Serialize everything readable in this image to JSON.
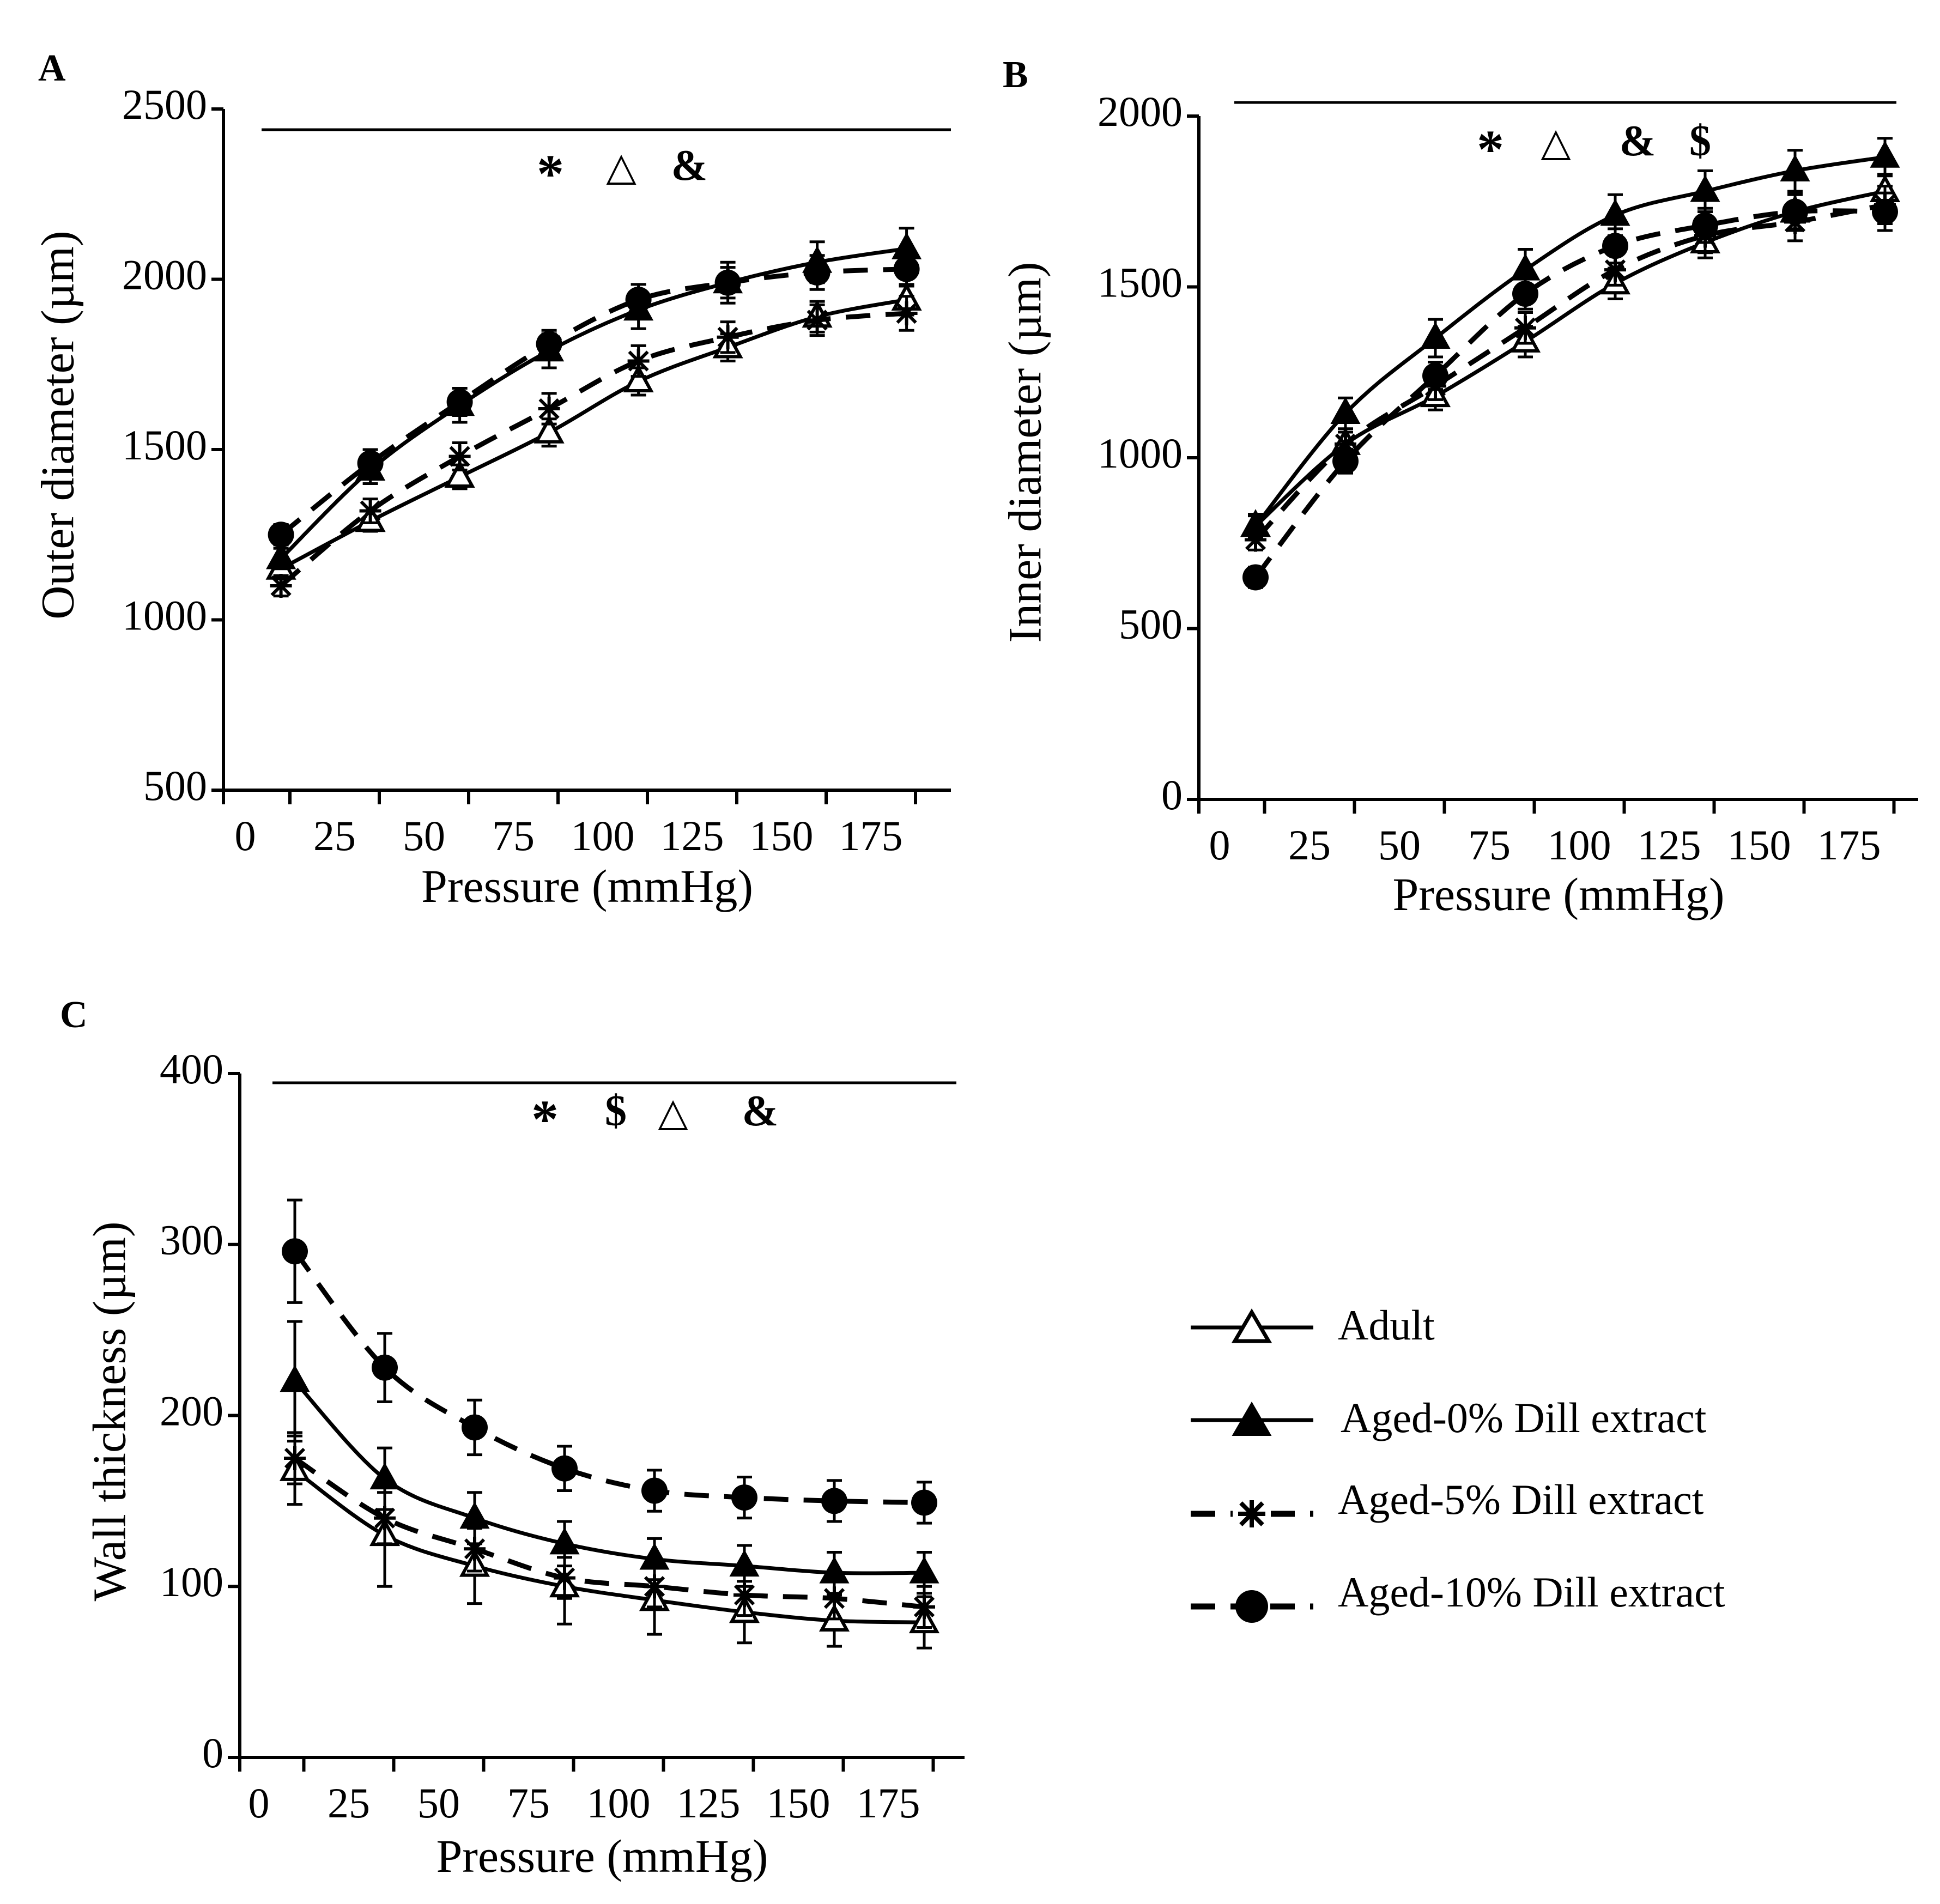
{
  "colors": {
    "ink": "#000000",
    "background": "#ffffff"
  },
  "legend": {
    "items": [
      {
        "label": "Adult",
        "marker": "open-triangle",
        "dash": "solid"
      },
      {
        "label": "Aged-0% Dill extract",
        "marker": "filled-triangle",
        "dash": "solid"
      },
      {
        "label": "Aged-5% Dill extract",
        "marker": "asterisk",
        "dash": "dashed"
      },
      {
        "label": "Aged-10% Dill extract",
        "marker": "filled-circle",
        "dash": "dashed"
      }
    ]
  },
  "chart_data": [
    {
      "panel": "A",
      "type": "line",
      "xlabel": "Pressure (mmHg)",
      "ylabel": "Outer diameter (µm)",
      "xlim": [
        0,
        200
      ],
      "ylim": [
        500,
        2500
      ],
      "xticks": [
        0,
        25,
        50,
        75,
        100,
        125,
        150,
        175
      ],
      "yticks": [
        500,
        1000,
        1500,
        2000,
        2500
      ],
      "x": [
        10,
        35,
        60,
        85,
        110,
        135,
        160,
        185
      ],
      "significance": [
        "*",
        "△",
        "&"
      ],
      "series": [
        {
          "name": "Adult",
          "values": [
            1150,
            1290,
            1420,
            1550,
            1700,
            1800,
            1890,
            1940
          ],
          "errors": [
            30,
            30,
            35,
            40,
            40,
            40,
            45,
            45
          ]
        },
        {
          "name": "Aged-0% Dill extract",
          "values": [
            1180,
            1440,
            1630,
            1790,
            1910,
            1990,
            2050,
            2090
          ],
          "errors": [
            30,
            40,
            50,
            50,
            55,
            60,
            60,
            60
          ]
        },
        {
          "name": "Aged-5% Dill extract",
          "values": [
            1100,
            1320,
            1480,
            1620,
            1760,
            1830,
            1880,
            1900
          ],
          "errors": [
            30,
            35,
            40,
            45,
            45,
            45,
            45,
            50
          ]
        },
        {
          "name": "Aged-10% Dill extract",
          "values": [
            1250,
            1460,
            1640,
            1810,
            1940,
            1990,
            2020,
            2030
          ],
          "errors": [
            30,
            40,
            40,
            40,
            45,
            45,
            50,
            50
          ]
        }
      ]
    },
    {
      "panel": "B",
      "type": "line",
      "xlabel": "Pressure (mmHg)",
      "ylabel": "Inner diameter (µm)",
      "xlim": [
        0,
        200
      ],
      "ylim": [
        0,
        2000
      ],
      "xticks": [
        0,
        25,
        50,
        75,
        100,
        125,
        150,
        175
      ],
      "yticks": [
        0,
        500,
        1000,
        1500,
        2000
      ],
      "x": [
        10,
        35,
        60,
        85,
        110,
        135,
        160,
        185
      ],
      "significance": [
        "*",
        "△",
        "&",
        "$"
      ],
      "series": [
        {
          "name": "Adult",
          "values": [
            800,
            1040,
            1180,
            1340,
            1510,
            1630,
            1720,
            1780
          ],
          "errors": [
            30,
            35,
            40,
            45,
            45,
            45,
            50,
            50
          ]
        },
        {
          "name": "Aged-0% Dill extract",
          "values": [
            800,
            1130,
            1350,
            1550,
            1710,
            1780,
            1840,
            1880
          ],
          "errors": [
            35,
            45,
            55,
            60,
            60,
            60,
            60,
            55
          ]
        },
        {
          "name": "Aged-5% Dill extract",
          "values": [
            760,
            1040,
            1210,
            1380,
            1550,
            1650,
            1690,
            1740
          ],
          "errors": [
            30,
            35,
            40,
            45,
            45,
            50,
            55,
            55
          ]
        },
        {
          "name": "Aged-10% Dill extract",
          "values": [
            650,
            990,
            1240,
            1480,
            1620,
            1680,
            1720,
            1720
          ],
          "errors": [
            30,
            35,
            40,
            45,
            50,
            50,
            55,
            55
          ]
        }
      ]
    },
    {
      "panel": "C",
      "type": "line",
      "xlabel": "Pressure (mmHg)",
      "ylabel": "Wall thickness (µm)",
      "xlim": [
        0,
        200
      ],
      "ylim": [
        0,
        400
      ],
      "xticks": [
        0,
        25,
        50,
        75,
        100,
        125,
        150,
        175
      ],
      "yticks": [
        0,
        100,
        200,
        300,
        400
      ],
      "x": [
        10,
        35,
        60,
        85,
        110,
        135,
        160,
        185
      ],
      "significance": [
        "*",
        "$",
        "△",
        "&"
      ],
      "series": [
        {
          "name": "Adult",
          "values": [
            168,
            130,
            112,
            100,
            92,
            85,
            80,
            79
          ],
          "errors": [
            20,
            30,
            22,
            22,
            20,
            18,
            15,
            15
          ]
        },
        {
          "name": "Aged-0% Dill extract",
          "values": [
            220,
            163,
            140,
            125,
            116,
            112,
            108,
            108
          ],
          "errors": [
            35,
            18,
            15,
            13,
            12,
            12,
            12,
            12
          ]
        },
        {
          "name": "Aged-5% Dill extract",
          "values": [
            175,
            140,
            122,
            105,
            100,
            95,
            93,
            88
          ],
          "errors": [
            15,
            15,
            13,
            12,
            12,
            12,
            12,
            12
          ]
        },
        {
          "name": "Aged-10% Dill extract",
          "values": [
            296,
            228,
            193,
            169,
            156,
            152,
            150,
            149
          ],
          "errors": [
            30,
            20,
            16,
            13,
            12,
            12,
            12,
            12
          ]
        }
      ]
    }
  ]
}
